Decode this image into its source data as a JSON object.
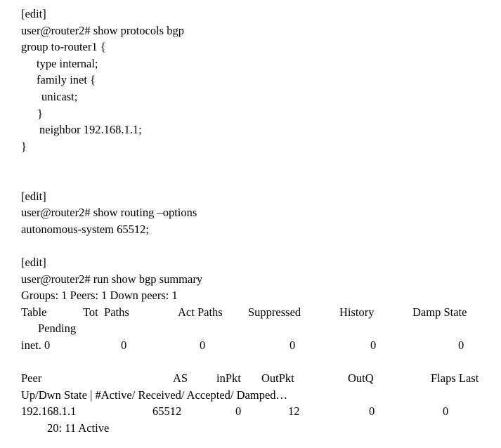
{
  "page": {
    "background_color": "#ffffff",
    "text_color": "#000000"
  },
  "block1": {
    "edit_label": "[edit]",
    "prompt_cmd": "user@router2# show protocols bgp",
    "config": {
      "group_open": "group to-router1 {",
      "type_line": "type internal;",
      "family_open": "family inet {",
      "unicast_line": "unicast;",
      "family_close": "}",
      "neighbor_line": "neighbor 192.168.1.1;",
      "group_close": "}"
    }
  },
  "block2": {
    "edit_label": "[edit]",
    "prompt_cmd": "user@router2# show routing –options",
    "as_line": "autonomous-system 65512;"
  },
  "block3": {
    "edit_label": "[edit]",
    "prompt_cmd": "user@router2# run show bgp summary",
    "groups_line": "Groups: 1 Peers: 1 Down peers: 1",
    "table_headers": [
      "Table",
      "Tot  Paths",
      "Act Paths",
      "Suppressed",
      "History",
      "Damp State"
    ],
    "pending_label": "Pending",
    "inet_row": [
      "inet. 0",
      "0",
      "0",
      "0",
      "0",
      "0"
    ]
  },
  "block4": {
    "peer_headers": [
      "Peer",
      "AS",
      "inPkt",
      "OutPkt",
      "OutQ",
      "Flaps Last"
    ],
    "subheader_line": "Up/Dwn State | #Active/ Received/ Accepted/ Damped…",
    "peer_row": [
      "192.168.1.1",
      "65512",
      "0",
      "12",
      "0",
      "0"
    ],
    "state_line": "20: 11 Active"
  }
}
